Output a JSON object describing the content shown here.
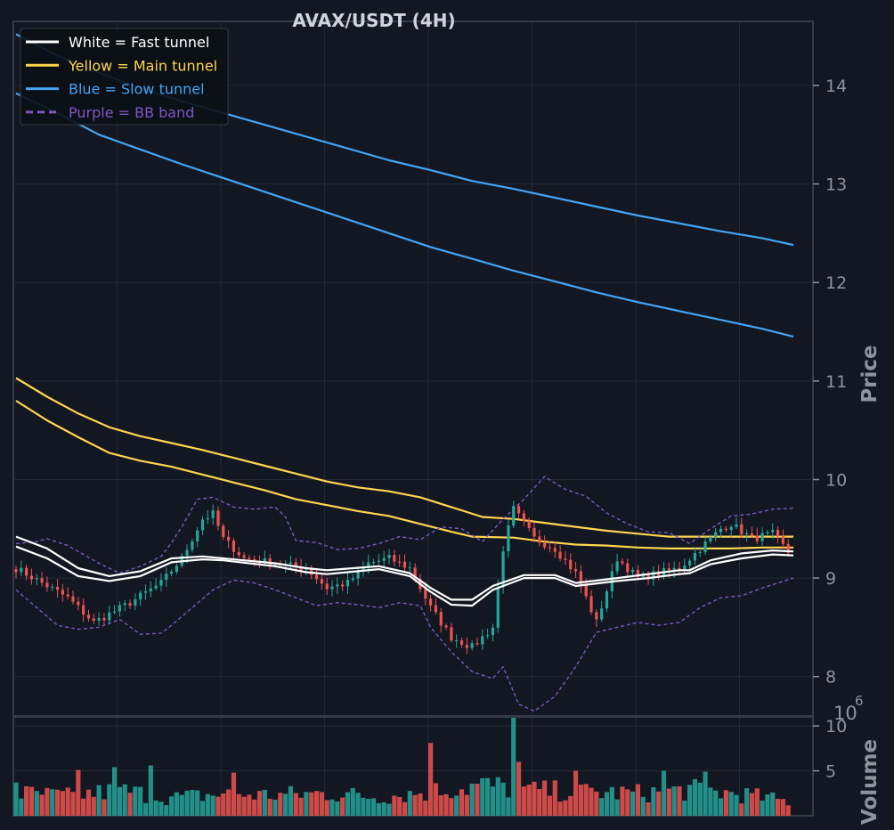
{
  "chart_data": {
    "type": "candlestick",
    "title": "AVAX/USDT (4H)",
    "ylabel": "Price",
    "volume_label": "Volume",
    "volume_scale_label": "10",
    "volume_scale_exp": "6",
    "ylim": [
      7.6,
      14.65
    ],
    "volume_ylim": [
      0,
      11
    ],
    "price_ticks": [
      8,
      9,
      10,
      11,
      12,
      13,
      14
    ],
    "price_tick_labels": [
      "8",
      "9",
      "10",
      "11",
      "12",
      "13",
      "14"
    ],
    "volume_ticks": [
      5,
      10
    ],
    "volume_tick_labels": [
      "5",
      "10"
    ],
    "grid": true,
    "legend_position": "top-left",
    "colors": {
      "background": "#131722",
      "grid": "#232836",
      "axis": "#363a45",
      "up": "#26a69a",
      "down": "#ef5350",
      "fast": "#ffffff",
      "main": "#ffd54f",
      "slow": "#42a5f5",
      "bb": "#7e57c2"
    },
    "legend": [
      {
        "label": "White = Fast tunnel",
        "color": "#ffffff",
        "dashed": false
      },
      {
        "label": "Yellow = Main tunnel",
        "color": "#ffd54f",
        "dashed": false
      },
      {
        "label": "Blue = Slow tunnel",
        "color": "#42a5f5",
        "dashed": false
      },
      {
        "label": "Purple = BB band",
        "color": "#7e57c2",
        "dashed": true
      }
    ],
    "bar_count": 150,
    "close_path": [
      [
        0,
        9.1
      ],
      [
        10,
        8.8
      ],
      [
        15,
        8.55
      ],
      [
        22,
        8.75
      ],
      [
        28,
        8.95
      ],
      [
        32,
        9.2
      ],
      [
        36,
        9.6
      ],
      [
        38,
        9.65
      ],
      [
        40,
        9.4
      ],
      [
        44,
        9.2
      ],
      [
        50,
        9.15
      ],
      [
        56,
        9.1
      ],
      [
        60,
        8.9
      ],
      [
        64,
        8.95
      ],
      [
        68,
        9.15
      ],
      [
        72,
        9.2
      ],
      [
        76,
        9.1
      ],
      [
        80,
        8.7
      ],
      [
        84,
        8.4
      ],
      [
        88,
        8.3
      ],
      [
        92,
        8.5
      ],
      [
        94,
        9.3
      ],
      [
        96,
        9.7
      ],
      [
        100,
        9.4
      ],
      [
        104,
        9.3
      ],
      [
        108,
        9.05
      ],
      [
        112,
        8.55
      ],
      [
        116,
        9.2
      ],
      [
        120,
        9.0
      ],
      [
        124,
        9.05
      ],
      [
        128,
        9.1
      ],
      [
        132,
        9.3
      ],
      [
        136,
        9.5
      ],
      [
        138,
        9.55
      ],
      [
        142,
        9.4
      ],
      [
        146,
        9.45
      ],
      [
        150,
        9.2
      ]
    ],
    "fast_upper": [
      [
        0,
        9.42
      ],
      [
        6,
        9.3
      ],
      [
        12,
        9.1
      ],
      [
        18,
        9.02
      ],
      [
        24,
        9.07
      ],
      [
        30,
        9.2
      ],
      [
        36,
        9.22
      ],
      [
        40,
        9.2
      ],
      [
        50,
        9.15
      ],
      [
        56,
        9.1
      ],
      [
        60,
        9.08
      ],
      [
        70,
        9.12
      ],
      [
        76,
        9.05
      ],
      [
        80,
        8.9
      ],
      [
        84,
        8.78
      ],
      [
        88,
        8.78
      ],
      [
        92,
        8.92
      ],
      [
        98,
        9.03
      ],
      [
        104,
        9.03
      ],
      [
        108,
        8.95
      ],
      [
        116,
        9.0
      ],
      [
        122,
        9.04
      ],
      [
        128,
        9.08
      ],
      [
        130,
        9.08
      ],
      [
        134,
        9.18
      ],
      [
        140,
        9.25
      ],
      [
        146,
        9.28
      ],
      [
        150,
        9.27
      ]
    ],
    "fast_lower": [
      [
        0,
        9.32
      ],
      [
        6,
        9.2
      ],
      [
        12,
        9.02
      ],
      [
        18,
        8.97
      ],
      [
        24,
        9.02
      ],
      [
        30,
        9.16
      ],
      [
        36,
        9.19
      ],
      [
        40,
        9.18
      ],
      [
        50,
        9.12
      ],
      [
        56,
        9.06
      ],
      [
        60,
        9.04
      ],
      [
        70,
        9.09
      ],
      [
        76,
        9.02
      ],
      [
        80,
        8.86
      ],
      [
        84,
        8.73
      ],
      [
        88,
        8.72
      ],
      [
        92,
        8.88
      ],
      [
        98,
        9.0
      ],
      [
        104,
        9.0
      ],
      [
        108,
        8.92
      ],
      [
        116,
        8.97
      ],
      [
        122,
        9.0
      ],
      [
        128,
        9.04
      ],
      [
        130,
        9.05
      ],
      [
        134,
        9.14
      ],
      [
        140,
        9.2
      ],
      [
        146,
        9.24
      ],
      [
        150,
        9.23
      ]
    ],
    "main_upper": [
      [
        0,
        11.03
      ],
      [
        6,
        10.84
      ],
      [
        12,
        10.67
      ],
      [
        18,
        10.53
      ],
      [
        24,
        10.44
      ],
      [
        30,
        10.37
      ],
      [
        36,
        10.3
      ],
      [
        42,
        10.22
      ],
      [
        48,
        10.14
      ],
      [
        54,
        10.06
      ],
      [
        60,
        9.98
      ],
      [
        66,
        9.92
      ],
      [
        72,
        9.88
      ],
      [
        78,
        9.82
      ],
      [
        84,
        9.72
      ],
      [
        90,
        9.62
      ],
      [
        96,
        9.6
      ],
      [
        102,
        9.56
      ],
      [
        108,
        9.52
      ],
      [
        114,
        9.48
      ],
      [
        120,
        9.45
      ],
      [
        126,
        9.42
      ],
      [
        132,
        9.42
      ],
      [
        138,
        9.42
      ],
      [
        144,
        9.42
      ],
      [
        150,
        9.42
      ]
    ],
    "main_lower": [
      [
        0,
        10.8
      ],
      [
        6,
        10.6
      ],
      [
        12,
        10.43
      ],
      [
        18,
        10.27
      ],
      [
        24,
        10.19
      ],
      [
        30,
        10.13
      ],
      [
        36,
        10.05
      ],
      [
        42,
        9.97
      ],
      [
        48,
        9.89
      ],
      [
        54,
        9.8
      ],
      [
        60,
        9.74
      ],
      [
        66,
        9.68
      ],
      [
        72,
        9.63
      ],
      [
        78,
        9.55
      ],
      [
        84,
        9.47
      ],
      [
        88,
        9.42
      ],
      [
        96,
        9.41
      ],
      [
        102,
        9.37
      ],
      [
        108,
        9.34
      ],
      [
        114,
        9.33
      ],
      [
        120,
        9.31
      ],
      [
        126,
        9.3
      ],
      [
        132,
        9.3
      ],
      [
        138,
        9.3
      ],
      [
        144,
        9.31
      ],
      [
        150,
        9.31
      ]
    ],
    "slow_upper": [
      [
        0,
        14.52
      ],
      [
        8,
        14.3
      ],
      [
        16,
        14.13
      ],
      [
        24,
        13.97
      ],
      [
        32,
        13.84
      ],
      [
        40,
        13.72
      ],
      [
        48,
        13.6
      ],
      [
        56,
        13.48
      ],
      [
        64,
        13.36
      ],
      [
        72,
        13.24
      ],
      [
        80,
        13.14
      ],
      [
        88,
        13.03
      ],
      [
        96,
        12.95
      ],
      [
        104,
        12.86
      ],
      [
        112,
        12.77
      ],
      [
        120,
        12.68
      ],
      [
        128,
        12.6
      ],
      [
        136,
        12.52
      ],
      [
        144,
        12.45
      ],
      [
        150,
        12.38
      ]
    ],
    "slow_lower": [
      [
        0,
        13.92
      ],
      [
        8,
        13.72
      ],
      [
        16,
        13.5
      ],
      [
        24,
        13.35
      ],
      [
        32,
        13.2
      ],
      [
        40,
        13.06
      ],
      [
        48,
        12.92
      ],
      [
        56,
        12.78
      ],
      [
        64,
        12.64
      ],
      [
        72,
        12.5
      ],
      [
        80,
        12.36
      ],
      [
        88,
        12.24
      ],
      [
        96,
        12.12
      ],
      [
        104,
        12.01
      ],
      [
        112,
        11.9
      ],
      [
        120,
        11.8
      ],
      [
        128,
        11.71
      ],
      [
        136,
        11.62
      ],
      [
        144,
        11.53
      ],
      [
        150,
        11.45
      ]
    ],
    "bb_upper": [
      [
        0,
        9.35
      ],
      [
        4,
        9.37
      ],
      [
        6,
        9.4
      ],
      [
        10,
        9.33
      ],
      [
        16,
        9.15
      ],
      [
        20,
        9.05
      ],
      [
        24,
        9.12
      ],
      [
        28,
        9.22
      ],
      [
        30,
        9.36
      ],
      [
        32,
        9.52
      ],
      [
        35,
        9.8
      ],
      [
        38,
        9.82
      ],
      [
        42,
        9.72
      ],
      [
        46,
        9.7
      ],
      [
        50,
        9.72
      ],
      [
        52,
        9.62
      ],
      [
        54,
        9.38
      ],
      [
        58,
        9.36
      ],
      [
        62,
        9.29
      ],
      [
        66,
        9.3
      ],
      [
        70,
        9.35
      ],
      [
        74,
        9.42
      ],
      [
        78,
        9.39
      ],
      [
        82,
        9.52
      ],
      [
        86,
        9.5
      ],
      [
        90,
        9.37
      ],
      [
        94,
        9.6
      ],
      [
        98,
        9.8
      ],
      [
        102,
        10.03
      ],
      [
        106,
        9.9
      ],
      [
        110,
        9.83
      ],
      [
        114,
        9.66
      ],
      [
        118,
        9.55
      ],
      [
        122,
        9.47
      ],
      [
        126,
        9.46
      ],
      [
        130,
        9.35
      ],
      [
        134,
        9.5
      ],
      [
        138,
        9.63
      ],
      [
        142,
        9.65
      ],
      [
        146,
        9.7
      ],
      [
        150,
        9.71
      ]
    ],
    "bb_lower": [
      [
        0,
        8.88
      ],
      [
        4,
        8.7
      ],
      [
        8,
        8.52
      ],
      [
        12,
        8.48
      ],
      [
        16,
        8.5
      ],
      [
        20,
        8.58
      ],
      [
        24,
        8.43
      ],
      [
        28,
        8.44
      ],
      [
        30,
        8.52
      ],
      [
        34,
        8.7
      ],
      [
        38,
        8.88
      ],
      [
        42,
        8.98
      ],
      [
        46,
        8.95
      ],
      [
        50,
        8.88
      ],
      [
        54,
        8.8
      ],
      [
        58,
        8.72
      ],
      [
        62,
        8.75
      ],
      [
        66,
        8.73
      ],
      [
        70,
        8.7
      ],
      [
        74,
        8.75
      ],
      [
        78,
        8.72
      ],
      [
        80,
        8.5
      ],
      [
        84,
        8.25
      ],
      [
        88,
        8.05
      ],
      [
        92,
        7.98
      ],
      [
        94,
        8.1
      ],
      [
        97,
        7.72
      ],
      [
        100,
        7.65
      ],
      [
        104,
        7.8
      ],
      [
        108,
        8.1
      ],
      [
        112,
        8.45
      ],
      [
        116,
        8.5
      ],
      [
        120,
        8.55
      ],
      [
        124,
        8.52
      ],
      [
        128,
        8.55
      ],
      [
        132,
        8.7
      ],
      [
        136,
        8.8
      ],
      [
        140,
        8.82
      ],
      [
        144,
        8.9
      ],
      [
        150,
        9.0
      ]
    ],
    "volume_anchors": [
      [
        0,
        2.5
      ],
      [
        10,
        2.2
      ],
      [
        20,
        2.8
      ],
      [
        30,
        2.0
      ],
      [
        40,
        2.4
      ],
      [
        50,
        2.3
      ],
      [
        60,
        2.5
      ],
      [
        70,
        2.1
      ],
      [
        80,
        2.7
      ],
      [
        90,
        3.4
      ],
      [
        100,
        2.8
      ],
      [
        110,
        2.6
      ],
      [
        120,
        2.5
      ],
      [
        130,
        2.9
      ],
      [
        140,
        2.4
      ],
      [
        150,
        1.5
      ]
    ],
    "volume_spikes": [
      [
        0,
        3.7
      ],
      [
        12,
        5.1
      ],
      [
        19,
        5.4
      ],
      [
        26,
        5.6
      ],
      [
        42,
        4.8
      ],
      [
        80,
        8.1
      ],
      [
        96,
        10.9
      ],
      [
        97,
        6.0
      ],
      [
        108,
        5.0
      ],
      [
        125,
        5.0
      ],
      [
        133,
        4.9
      ]
    ]
  }
}
